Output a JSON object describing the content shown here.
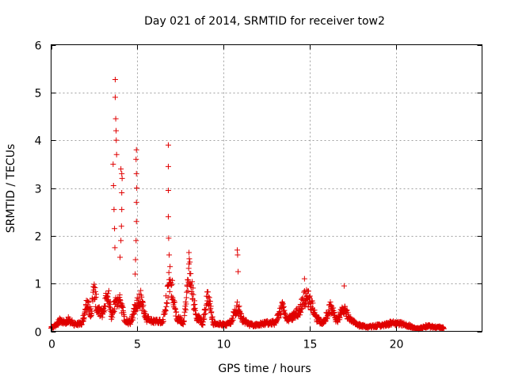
{
  "chart_data": {
    "type": "scatter",
    "title": "Day 021 of 2014, SRMTID for receiver tow2",
    "xlabel": "GPS time / hours",
    "ylabel": "SRMTID / TECUs",
    "xlim": [
      0,
      25
    ],
    "ylim": [
      0,
      6
    ],
    "xticks": [
      0,
      5,
      10,
      15,
      20
    ],
    "yticks": [
      0,
      1,
      2,
      3,
      4,
      5,
      6
    ],
    "grid": true,
    "marker": "plus",
    "color": "#e00000",
    "series": [
      {
        "name": "SRMTID tow2",
        "envelope": [
          [
            0.0,
            0.08
          ],
          [
            0.3,
            0.15
          ],
          [
            0.5,
            0.25
          ],
          [
            0.8,
            0.2
          ],
          [
            1.0,
            0.28
          ],
          [
            1.4,
            0.15
          ],
          [
            1.8,
            0.2
          ],
          [
            2.1,
            0.7
          ],
          [
            2.3,
            0.4
          ],
          [
            2.5,
            1.1
          ],
          [
            2.7,
            0.5
          ],
          [
            3.0,
            0.45
          ],
          [
            3.3,
            1.0
          ],
          [
            3.5,
            0.4
          ],
          [
            3.8,
            0.8
          ],
          [
            4.0,
            0.75
          ],
          [
            4.3,
            0.25
          ],
          [
            4.6,
            0.2
          ],
          [
            4.9,
            0.6
          ],
          [
            5.2,
            0.8
          ],
          [
            5.5,
            0.3
          ],
          [
            6.0,
            0.25
          ],
          [
            6.5,
            0.25
          ],
          [
            6.9,
            1.4
          ],
          [
            7.3,
            0.35
          ],
          [
            7.7,
            0.2
          ],
          [
            8.0,
            1.5
          ],
          [
            8.4,
            0.4
          ],
          [
            8.8,
            0.2
          ],
          [
            9.1,
            0.9
          ],
          [
            9.4,
            0.2
          ],
          [
            10.0,
            0.15
          ],
          [
            10.4,
            0.2
          ],
          [
            10.8,
            0.6
          ],
          [
            11.1,
            0.3
          ],
          [
            11.5,
            0.15
          ],
          [
            12.0,
            0.15
          ],
          [
            12.5,
            0.2
          ],
          [
            13.0,
            0.2
          ],
          [
            13.4,
            0.6
          ],
          [
            13.7,
            0.3
          ],
          [
            14.0,
            0.35
          ],
          [
            14.4,
            0.5
          ],
          [
            14.8,
            0.9
          ],
          [
            15.1,
            0.7
          ],
          [
            15.4,
            0.3
          ],
          [
            15.8,
            0.2
          ],
          [
            16.2,
            0.6
          ],
          [
            16.6,
            0.25
          ],
          [
            17.0,
            0.6
          ],
          [
            17.3,
            0.3
          ],
          [
            17.8,
            0.15
          ],
          [
            18.3,
            0.1
          ],
          [
            18.8,
            0.12
          ],
          [
            19.3,
            0.15
          ],
          [
            19.8,
            0.2
          ],
          [
            20.3,
            0.18
          ],
          [
            20.8,
            0.12
          ],
          [
            21.3,
            0.05
          ],
          [
            21.8,
            0.12
          ],
          [
            22.3,
            0.1
          ],
          [
            22.8,
            0.08
          ]
        ],
        "outliers": [
          [
            3.72,
            5.27
          ],
          [
            3.72,
            4.9
          ],
          [
            3.75,
            4.45
          ],
          [
            3.77,
            4.2
          ],
          [
            3.78,
            4.0
          ],
          [
            3.8,
            3.7
          ],
          [
            3.6,
            3.5
          ],
          [
            3.62,
            3.05
          ],
          [
            3.65,
            2.55
          ],
          [
            3.68,
            2.15
          ],
          [
            3.7,
            1.75
          ],
          [
            4.05,
            3.4
          ],
          [
            4.1,
            3.3
          ],
          [
            4.12,
            3.2
          ],
          [
            4.1,
            2.9
          ],
          [
            4.1,
            2.55
          ],
          [
            4.08,
            2.2
          ],
          [
            4.05,
            1.9
          ],
          [
            4.0,
            1.55
          ],
          [
            4.95,
            3.8
          ],
          [
            4.93,
            3.6
          ],
          [
            4.95,
            3.3
          ],
          [
            4.97,
            3.0
          ],
          [
            4.95,
            2.7
          ],
          [
            4.95,
            2.3
          ],
          [
            4.93,
            1.9
          ],
          [
            4.9,
            1.5
          ],
          [
            4.88,
            1.2
          ],
          [
            6.8,
            3.9
          ],
          [
            6.8,
            3.45
          ],
          [
            6.8,
            2.95
          ],
          [
            6.8,
            2.4
          ],
          [
            6.82,
            1.95
          ],
          [
            6.85,
            1.6
          ],
          [
            8.0,
            1.65
          ],
          [
            8.05,
            1.45
          ],
          [
            10.8,
            1.7
          ],
          [
            10.82,
            1.6
          ],
          [
            10.85,
            1.25
          ],
          [
            14.7,
            1.1
          ],
          [
            17.0,
            0.95
          ]
        ]
      }
    ]
  }
}
